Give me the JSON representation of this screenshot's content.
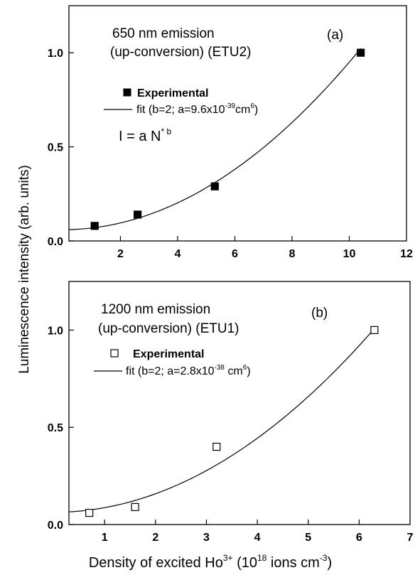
{
  "ylabel": "Luminescence intensity (arb. units)",
  "xlabel": {
    "prefix": "Density of excited Ho",
    "sup1": "3+",
    "middle": " (10",
    "sup2": "18",
    "mid2": " ions cm",
    "sup3": "-3",
    "suffix": ")"
  },
  "chart_data": [
    {
      "type": "scatter",
      "panel_label": "(a)",
      "title_line1": "650 nm emission",
      "title_line2": "(up-conversion) (ETU2)",
      "legend": {
        "experimental": "Experimental",
        "fit_prefix": "fit (b=2; a=9.6x10",
        "fit_exp": "-39",
        "fit_unit": "cm",
        "fit_unit_exp": "6",
        "fit_suffix": ")"
      },
      "formula": {
        "base": "I = a N",
        "exp": "* b"
      },
      "xlim": [
        0.2,
        12
      ],
      "ylim": [
        0,
        1.25
      ],
      "xticks": [
        2,
        4,
        6,
        8,
        10,
        12
      ],
      "xtick_labels": [
        "2",
        "4",
        "6",
        "8",
        "10",
        "12"
      ],
      "yticks": [
        0.0,
        0.5,
        1.0
      ],
      "ytick_labels": [
        "0.0",
        "0.5",
        "1.0"
      ],
      "marker_fill": "#000000",
      "series": [
        {
          "name": "Experimental",
          "x": [
            1.1,
            2.6,
            5.3,
            10.4
          ],
          "y": [
            0.08,
            0.14,
            0.29,
            1.0
          ]
        },
        {
          "name": "fit",
          "fit": {
            "c": 0.06,
            "a": 0.0089,
            "b": 2
          },
          "x_range": [
            0.2,
            10.4
          ]
        }
      ]
    },
    {
      "type": "scatter",
      "panel_label": "(b)",
      "title_line1": "1200 nm emission",
      "title_line2": "(up-conversion) (ETU1)",
      "legend": {
        "experimental": "Experimental",
        "fit_prefix": "fit (b=2; a=2.8x10",
        "fit_exp": "-38",
        "fit_unit": " cm",
        "fit_unit_exp": "6",
        "fit_suffix": ")"
      },
      "xlim": [
        0.3,
        7
      ],
      "ylim": [
        0,
        1.25
      ],
      "xticks": [
        1,
        2,
        3,
        4,
        5,
        6,
        7
      ],
      "xtick_labels": [
        "1",
        "2",
        "3",
        "4",
        "5",
        "6",
        "7"
      ],
      "yticks": [
        0.0,
        0.5,
        1.0
      ],
      "ytick_labels": [
        "0.0",
        "0.5",
        "1.0"
      ],
      "marker_fill": "#ffffff",
      "series": [
        {
          "name": "Experimental",
          "x": [
            0.7,
            1.6,
            3.2,
            6.3
          ],
          "y": [
            0.06,
            0.09,
            0.4,
            1.0
          ]
        },
        {
          "name": "fit",
          "fit": {
            "c": 0.063,
            "a": 0.0238,
            "b": 2
          },
          "x_range": [
            0.3,
            6.3
          ]
        }
      ]
    }
  ]
}
